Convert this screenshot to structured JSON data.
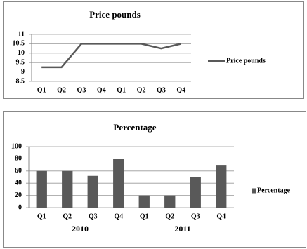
{
  "chart_data": [
    {
      "type": "line",
      "title": "Price pounds",
      "categories": [
        "Q1",
        "Q2",
        "Q3",
        "Q4",
        "Q1",
        "Q2",
        "Q3",
        "Q4"
      ],
      "series": [
        {
          "name": "Price pounds",
          "color": "#595959",
          "values": [
            9.25,
            9.25,
            10.5,
            10.5,
            10.5,
            10.5,
            10.25,
            10.5
          ]
        }
      ],
      "ylim": [
        8.5,
        11
      ],
      "yticks": [
        8.5,
        9,
        9.5,
        10,
        10.5,
        11
      ],
      "grid": true,
      "legend": "right"
    },
    {
      "type": "bar",
      "title": "Percentage",
      "categories": [
        "Q1",
        "Q2",
        "Q3",
        "Q4",
        "Q1",
        "Q2",
        "Q3",
        "Q4"
      ],
      "group_labels": [
        "2010",
        "2011"
      ],
      "series": [
        {
          "name": "Percentage",
          "color": "#595959",
          "values": [
            60,
            60,
            52,
            80,
            20,
            20,
            50,
            70
          ]
        }
      ],
      "ylim": [
        0,
        100
      ],
      "yticks": [
        0,
        20,
        40,
        60,
        80,
        100
      ],
      "grid": true,
      "legend": "right"
    }
  ]
}
